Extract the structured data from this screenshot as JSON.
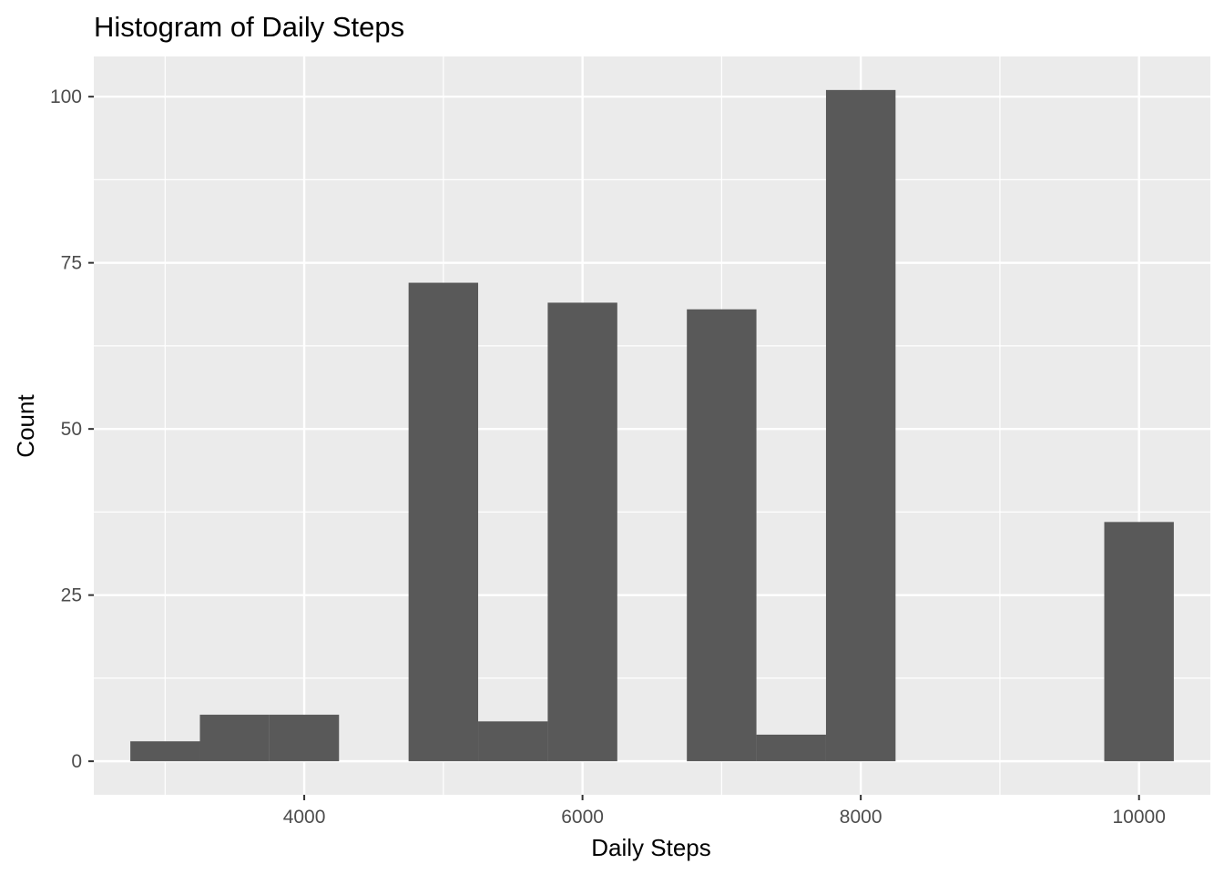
{
  "chart_data": {
    "type": "bar",
    "subtype": "histogram",
    "title": "Histogram of Daily Steps",
    "xlabel": "Daily Steps",
    "ylabel": "Count",
    "bin_width": 500,
    "bins": [
      {
        "x_start": 2750,
        "x_end": 3250,
        "count": 3
      },
      {
        "x_start": 3250,
        "x_end": 3750,
        "count": 7
      },
      {
        "x_start": 3750,
        "x_end": 4250,
        "count": 7
      },
      {
        "x_start": 4250,
        "x_end": 4750,
        "count": 0
      },
      {
        "x_start": 4750,
        "x_end": 5250,
        "count": 72
      },
      {
        "x_start": 5250,
        "x_end": 5750,
        "count": 6
      },
      {
        "x_start": 5750,
        "x_end": 6250,
        "count": 69
      },
      {
        "x_start": 6250,
        "x_end": 6750,
        "count": 0
      },
      {
        "x_start": 6750,
        "x_end": 7250,
        "count": 68
      },
      {
        "x_start": 7250,
        "x_end": 7750,
        "count": 4
      },
      {
        "x_start": 7750,
        "x_end": 8250,
        "count": 101
      },
      {
        "x_start": 8250,
        "x_end": 8750,
        "count": 0
      },
      {
        "x_start": 8750,
        "x_end": 9250,
        "count": 0
      },
      {
        "x_start": 9250,
        "x_end": 9750,
        "count": 0
      },
      {
        "x_start": 9750,
        "x_end": 10250,
        "count": 36
      }
    ],
    "xlim": [
      2487.5,
      10512.5
    ],
    "ylim": [
      -5.05,
      106.05
    ],
    "x_ticks": [
      4000,
      6000,
      8000,
      10000
    ],
    "x_tick_labels": [
      "4000",
      "6000",
      "8000",
      "10000"
    ],
    "x_minor_ticks": [
      3000,
      5000,
      7000,
      9000
    ],
    "y_ticks": [
      0,
      25,
      50,
      75,
      100
    ],
    "y_tick_labels": [
      "0",
      "25",
      "50",
      "75",
      "100"
    ],
    "y_minor_ticks": [
      12.5,
      37.5,
      62.5,
      87.5
    ],
    "grid": true,
    "legend": "none",
    "colors": {
      "bar_fill": "#595959",
      "panel_background": "#ebebeb",
      "grid_line": "#ffffff",
      "tick_label": "#4d4d4d",
      "axis_tick": "#333333"
    }
  }
}
